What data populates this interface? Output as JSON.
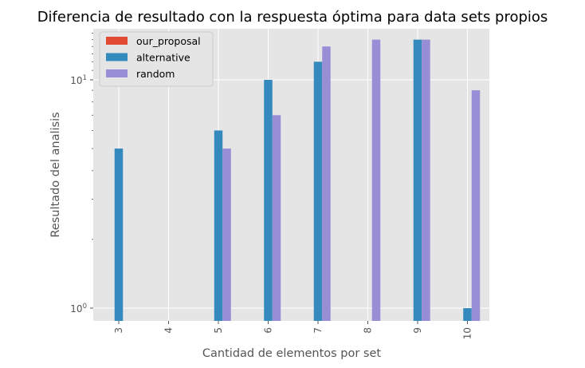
{
  "chart_data": {
    "type": "bar",
    "title": "Diferencia de resultado con la respuesta óptima para data sets propios",
    "xlabel": "Cantidad de elementos por set",
    "ylabel": "Resultado del analisis",
    "yscale": "log",
    "ylim": [
      0.9,
      16.5
    ],
    "grid": true,
    "legend_position": "top-left",
    "categories": [
      "3",
      "4",
      "5",
      "6",
      "7",
      "8",
      "9",
      "10"
    ],
    "series": [
      {
        "name": "our_proposal",
        "color": "#E24A33",
        "values": [
          null,
          null,
          null,
          null,
          null,
          null,
          null,
          null
        ]
      },
      {
        "name": "alternative",
        "color": "#348ABD",
        "values": [
          5,
          null,
          6,
          10,
          12,
          null,
          15,
          1
        ]
      },
      {
        "name": "random",
        "color": "#988ED5",
        "values": [
          null,
          null,
          5,
          7,
          14,
          15,
          15,
          9
        ]
      }
    ],
    "yticks": [
      {
        "value": 1,
        "label": "10^0"
      },
      {
        "value": 10,
        "label": "10^1"
      }
    ]
  }
}
